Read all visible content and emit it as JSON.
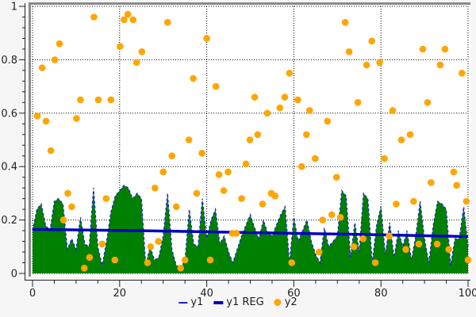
{
  "chart_data": {
    "type": "area",
    "title": "",
    "xlabel": "",
    "ylabel": "",
    "xlim": [
      0,
      100
    ],
    "ylim": [
      0,
      1
    ],
    "x_major_ticks": [
      0,
      20,
      40,
      60,
      80,
      100
    ],
    "x_minor_step": 5,
    "y_major_ticks": [
      0,
      0.2,
      0.4,
      0.6,
      0.8,
      1
    ],
    "y_minor_step": 0.04,
    "grid": "dotted",
    "legend_position": "bottom-center",
    "colors": {
      "area_fill": "#008000",
      "area_edge": "#2222cc",
      "reg_line": "#0000c2",
      "scatter": "#ffa500",
      "grid": "#000000",
      "axis": "#222222",
      "plot_bg": "#ffffff",
      "outer_bg": "#f6f6f6",
      "border": "#8a8a8a"
    },
    "series": [
      {
        "name": "y1",
        "type": "area",
        "x_start": 0,
        "x_step": 1,
        "values": [
          0.16,
          0.24,
          0.26,
          0.18,
          0.16,
          0.27,
          0.28,
          0.26,
          0.09,
          0.13,
          0.09,
          0.21,
          0.11,
          0.1,
          0.32,
          0.1,
          0.03,
          0.12,
          0.23,
          0.29,
          0.31,
          0.33,
          0.32,
          0.28,
          0.3,
          0.28,
          0.03,
          0.1,
          0.05,
          0.06,
          0.14,
          0.3,
          0.09,
          0.03,
          0.02,
          0.05,
          0.24,
          0.11,
          0.1,
          0.28,
          0.13,
          0.2,
          0.24,
          0.11,
          0.14,
          0.08,
          0.04,
          0.09,
          0.14,
          0.18,
          0.22,
          0.17,
          0.13,
          0.2,
          0.15,
          0.14,
          0.18,
          0.22,
          0.25,
          0.04,
          0.21,
          0.12,
          0.16,
          0.2,
          0.12,
          0.07,
          0.04,
          0.17,
          0.1,
          0.12,
          0.14,
          0.31,
          0.29,
          0.06,
          0.19,
          0.08,
          0.3,
          0.28,
          0.04,
          0.18,
          0.25,
          0.07,
          0.19,
          0.06,
          0.16,
          0.1,
          0.16,
          0.05,
          0.14,
          0.27,
          0.13,
          0.04,
          0.18,
          0.27,
          0.26,
          0.24,
          0.03,
          0.13,
          0.13,
          0.25,
          0.1
        ]
      },
      {
        "name": "y1 REG",
        "type": "line",
        "points": [
          [
            0,
            0.165
          ],
          [
            25,
            0.16
          ],
          [
            50,
            0.153
          ],
          [
            75,
            0.146
          ],
          [
            100,
            0.138
          ]
        ]
      },
      {
        "name": "y2",
        "type": "scatter",
        "points": [
          [
            1.1,
            0.59
          ],
          [
            2.2,
            0.77
          ],
          [
            3.1,
            0.57
          ],
          [
            4.2,
            0.46
          ],
          [
            5.1,
            0.8
          ],
          [
            6.2,
            0.86
          ],
          [
            7.1,
            0.2
          ],
          [
            8.1,
            0.3
          ],
          [
            9,
            0.25
          ],
          [
            10.1,
            0.58
          ],
          [
            11,
            0.65
          ],
          [
            11.9,
            0.02
          ],
          [
            13.1,
            0.06
          ],
          [
            14.1,
            0.96
          ],
          [
            15.1,
            0.65
          ],
          [
            16,
            0.11
          ],
          [
            16.9,
            0.28
          ],
          [
            18,
            0.65
          ],
          [
            18.9,
            0.05
          ],
          [
            20.1,
            0.85
          ],
          [
            21,
            0.95
          ],
          [
            21.9,
            0.97
          ],
          [
            23.1,
            0.95
          ],
          [
            23.9,
            0.79
          ],
          [
            25.1,
            0.83
          ],
          [
            26.4,
            0.04
          ],
          [
            27.1,
            0.1
          ],
          [
            28.1,
            0.32
          ],
          [
            28.9,
            0.12
          ],
          [
            30,
            0.38
          ],
          [
            31,
            0.94
          ],
          [
            32,
            0.44
          ],
          [
            33,
            0.25
          ],
          [
            34,
            0.02
          ],
          [
            35,
            0.05
          ],
          [
            35.9,
            0.5
          ],
          [
            36.9,
            0.73
          ],
          [
            37.7,
            0.3
          ],
          [
            38.9,
            0.45
          ],
          [
            40,
            0.88
          ],
          [
            40.8,
            0.05
          ],
          [
            42.1,
            0.7
          ],
          [
            42.8,
            0.37
          ],
          [
            43.9,
            0.31
          ],
          [
            44.9,
            0.38
          ],
          [
            45.9,
            0.15
          ],
          [
            46.8,
            0.15
          ],
          [
            48,
            0.28
          ],
          [
            49,
            0.41
          ],
          [
            49.9,
            0.5
          ],
          [
            51,
            0.66
          ],
          [
            51.7,
            0.52
          ],
          [
            52.8,
            0.26
          ],
          [
            53.9,
            0.6
          ],
          [
            54.8,
            0.3
          ],
          [
            55.7,
            0.29
          ],
          [
            56.8,
            0.62
          ],
          [
            57.9,
            0.66
          ],
          [
            59,
            0.75
          ],
          [
            59.5,
            0.04
          ],
          [
            60.9,
            0.65
          ],
          [
            61.8,
            0.4
          ],
          [
            62.9,
            0.52
          ],
          [
            63.6,
            0.61
          ],
          [
            64.9,
            0.43
          ],
          [
            65.8,
            0.08
          ],
          [
            66.6,
            0.2
          ],
          [
            67.7,
            0.57
          ],
          [
            68.7,
            0.22
          ],
          [
            69.8,
            0.36
          ],
          [
            70.7,
            0.21
          ],
          [
            71.8,
            0.94
          ],
          [
            72.7,
            0.83
          ],
          [
            73.8,
            0.1
          ],
          [
            74.7,
            0.64
          ],
          [
            75.9,
            0.13
          ],
          [
            76.7,
            0.78
          ],
          [
            77.9,
            0.87
          ],
          [
            78.7,
            0.04
          ],
          [
            79.7,
            0.79
          ],
          [
            80.8,
            0.43
          ],
          [
            81.9,
            0.14
          ],
          [
            82.7,
            0.61
          ],
          [
            83.5,
            0.26
          ],
          [
            84.7,
            0.5
          ],
          [
            85.7,
            0.09
          ],
          [
            86.7,
            0.52
          ],
          [
            87.5,
            0.27
          ],
          [
            88.7,
            0.11
          ],
          [
            89.6,
            0.84
          ],
          [
            90.7,
            0.64
          ],
          [
            91.5,
            0.34
          ],
          [
            92.9,
            0.11
          ],
          [
            93.6,
            0.78
          ],
          [
            94.7,
            0.84
          ],
          [
            95.6,
            0.09
          ],
          [
            96.7,
            0.38
          ],
          [
            97.4,
            0.33
          ],
          [
            98.6,
            0.75
          ],
          [
            99.6,
            0.27
          ],
          [
            100,
            0.05
          ]
        ]
      }
    ],
    "legend": {
      "items": [
        {
          "label": "y1",
          "marker": "thin-line",
          "color": "#2222cc"
        },
        {
          "label": "y1 REG",
          "marker": "thick-line",
          "color": "#0000c2"
        },
        {
          "label": "y2",
          "marker": "dot",
          "color": "#ffa500"
        }
      ]
    }
  }
}
